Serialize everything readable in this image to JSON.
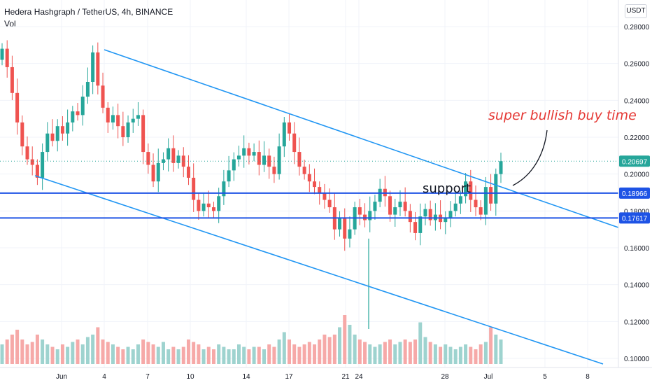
{
  "header": {
    "title": "Hedera Hashgraph / TetherUS, 4h, BINANCE",
    "volume_label": "Vol",
    "currency": "USDT"
  },
  "colors": {
    "up": "#26a69a",
    "down": "#ef5350",
    "trendline": "#2196f3",
    "hline": "#1e53e5",
    "annotation": "#e53935",
    "last_price_line": "#26a69a"
  },
  "annotations": {
    "buy_text": "super bullish  buy time",
    "support_text": "support"
  },
  "chart_data": {
    "type": "candlestick",
    "title": "Hedera Hashgraph / TetherUS, 4h, BINANCE",
    "ylim": [
      0.095,
      0.285
    ],
    "x_tick_labels": [
      "Jun",
      "4",
      "7",
      "10",
      "14",
      "17",
      "21",
      "24",
      "28",
      "Jul",
      "5",
      "8"
    ],
    "y_tick_labels": [
      "0.28000",
      "0.26000",
      "0.24000",
      "0.22000",
      "0.20000",
      "0.18000",
      "0.16000",
      "0.14000",
      "0.12000",
      "0.10000"
    ],
    "price_badges": [
      {
        "label": "0.20697",
        "value": 0.20697,
        "color": "#26a69a"
      },
      {
        "label": "0.18966",
        "value": 0.18966,
        "color": "#1e53e5"
      },
      {
        "label": "0.17617",
        "value": 0.17617,
        "color": "#1e53e5"
      }
    ],
    "horizontal_levels": [
      0.18966,
      0.17617
    ],
    "last_price": 0.20697,
    "candles_closes": [
      0.268,
      0.258,
      0.244,
      0.228,
      0.215,
      0.208,
      0.205,
      0.198,
      0.212,
      0.222,
      0.218,
      0.226,
      0.222,
      0.228,
      0.234,
      0.232,
      0.242,
      0.25,
      0.266,
      0.248,
      0.236,
      0.228,
      0.232,
      0.226,
      0.22,
      0.228,
      0.23,
      0.232,
      0.212,
      0.205,
      0.196,
      0.206,
      0.208,
      0.214,
      0.206,
      0.21,
      0.204,
      0.198,
      0.186,
      0.18,
      0.184,
      0.182,
      0.18,
      0.188,
      0.196,
      0.202,
      0.208,
      0.21,
      0.214,
      0.21,
      0.212,
      0.205,
      0.21,
      0.204,
      0.2,
      0.215,
      0.228,
      0.222,
      0.212,
      0.204,
      0.2,
      0.196,
      0.193,
      0.19,
      0.186,
      0.182,
      0.17,
      0.176,
      0.165,
      0.17,
      0.182,
      0.178,
      0.175,
      0.18,
      0.185,
      0.192,
      0.188,
      0.178,
      0.182,
      0.185,
      0.18,
      0.174,
      0.168,
      0.177,
      0.181,
      0.175,
      0.178,
      0.174,
      0.176,
      0.18,
      0.184,
      0.188,
      0.196,
      0.186,
      0.182,
      0.178,
      0.193,
      0.184,
      0.2,
      0.207
    ],
    "volume_series": [
      0.4,
      0.5,
      0.6,
      0.7,
      0.5,
      0.4,
      0.45,
      0.6,
      0.5,
      0.4,
      0.35,
      0.3,
      0.4,
      0.35,
      0.45,
      0.5,
      0.4,
      0.55,
      0.6,
      0.75,
      0.5,
      0.45,
      0.4,
      0.35,
      0.3,
      0.35,
      0.3,
      0.4,
      0.5,
      0.45,
      0.4,
      0.35,
      0.45,
      0.3,
      0.35,
      0.3,
      0.35,
      0.5,
      0.45,
      0.4,
      0.3,
      0.35,
      0.3,
      0.4,
      0.35,
      0.3,
      0.3,
      0.4,
      0.35,
      0.3,
      0.35,
      0.35,
      0.3,
      0.4,
      0.35,
      0.5,
      0.65,
      0.5,
      0.4,
      0.35,
      0.4,
      0.45,
      0.4,
      0.5,
      0.6,
      0.55,
      0.6,
      0.75,
      1.0,
      0.8,
      0.6,
      0.5,
      0.45,
      0.4,
      0.35,
      0.4,
      0.45,
      0.5,
      0.4,
      0.45,
      0.5,
      0.45,
      0.5,
      0.85,
      0.55,
      0.45,
      0.4,
      0.35,
      0.4,
      0.35,
      0.3,
      0.35,
      0.4,
      0.35,
      0.3,
      0.4,
      0.45,
      0.75,
      0.6,
      0.5
    ]
  }
}
